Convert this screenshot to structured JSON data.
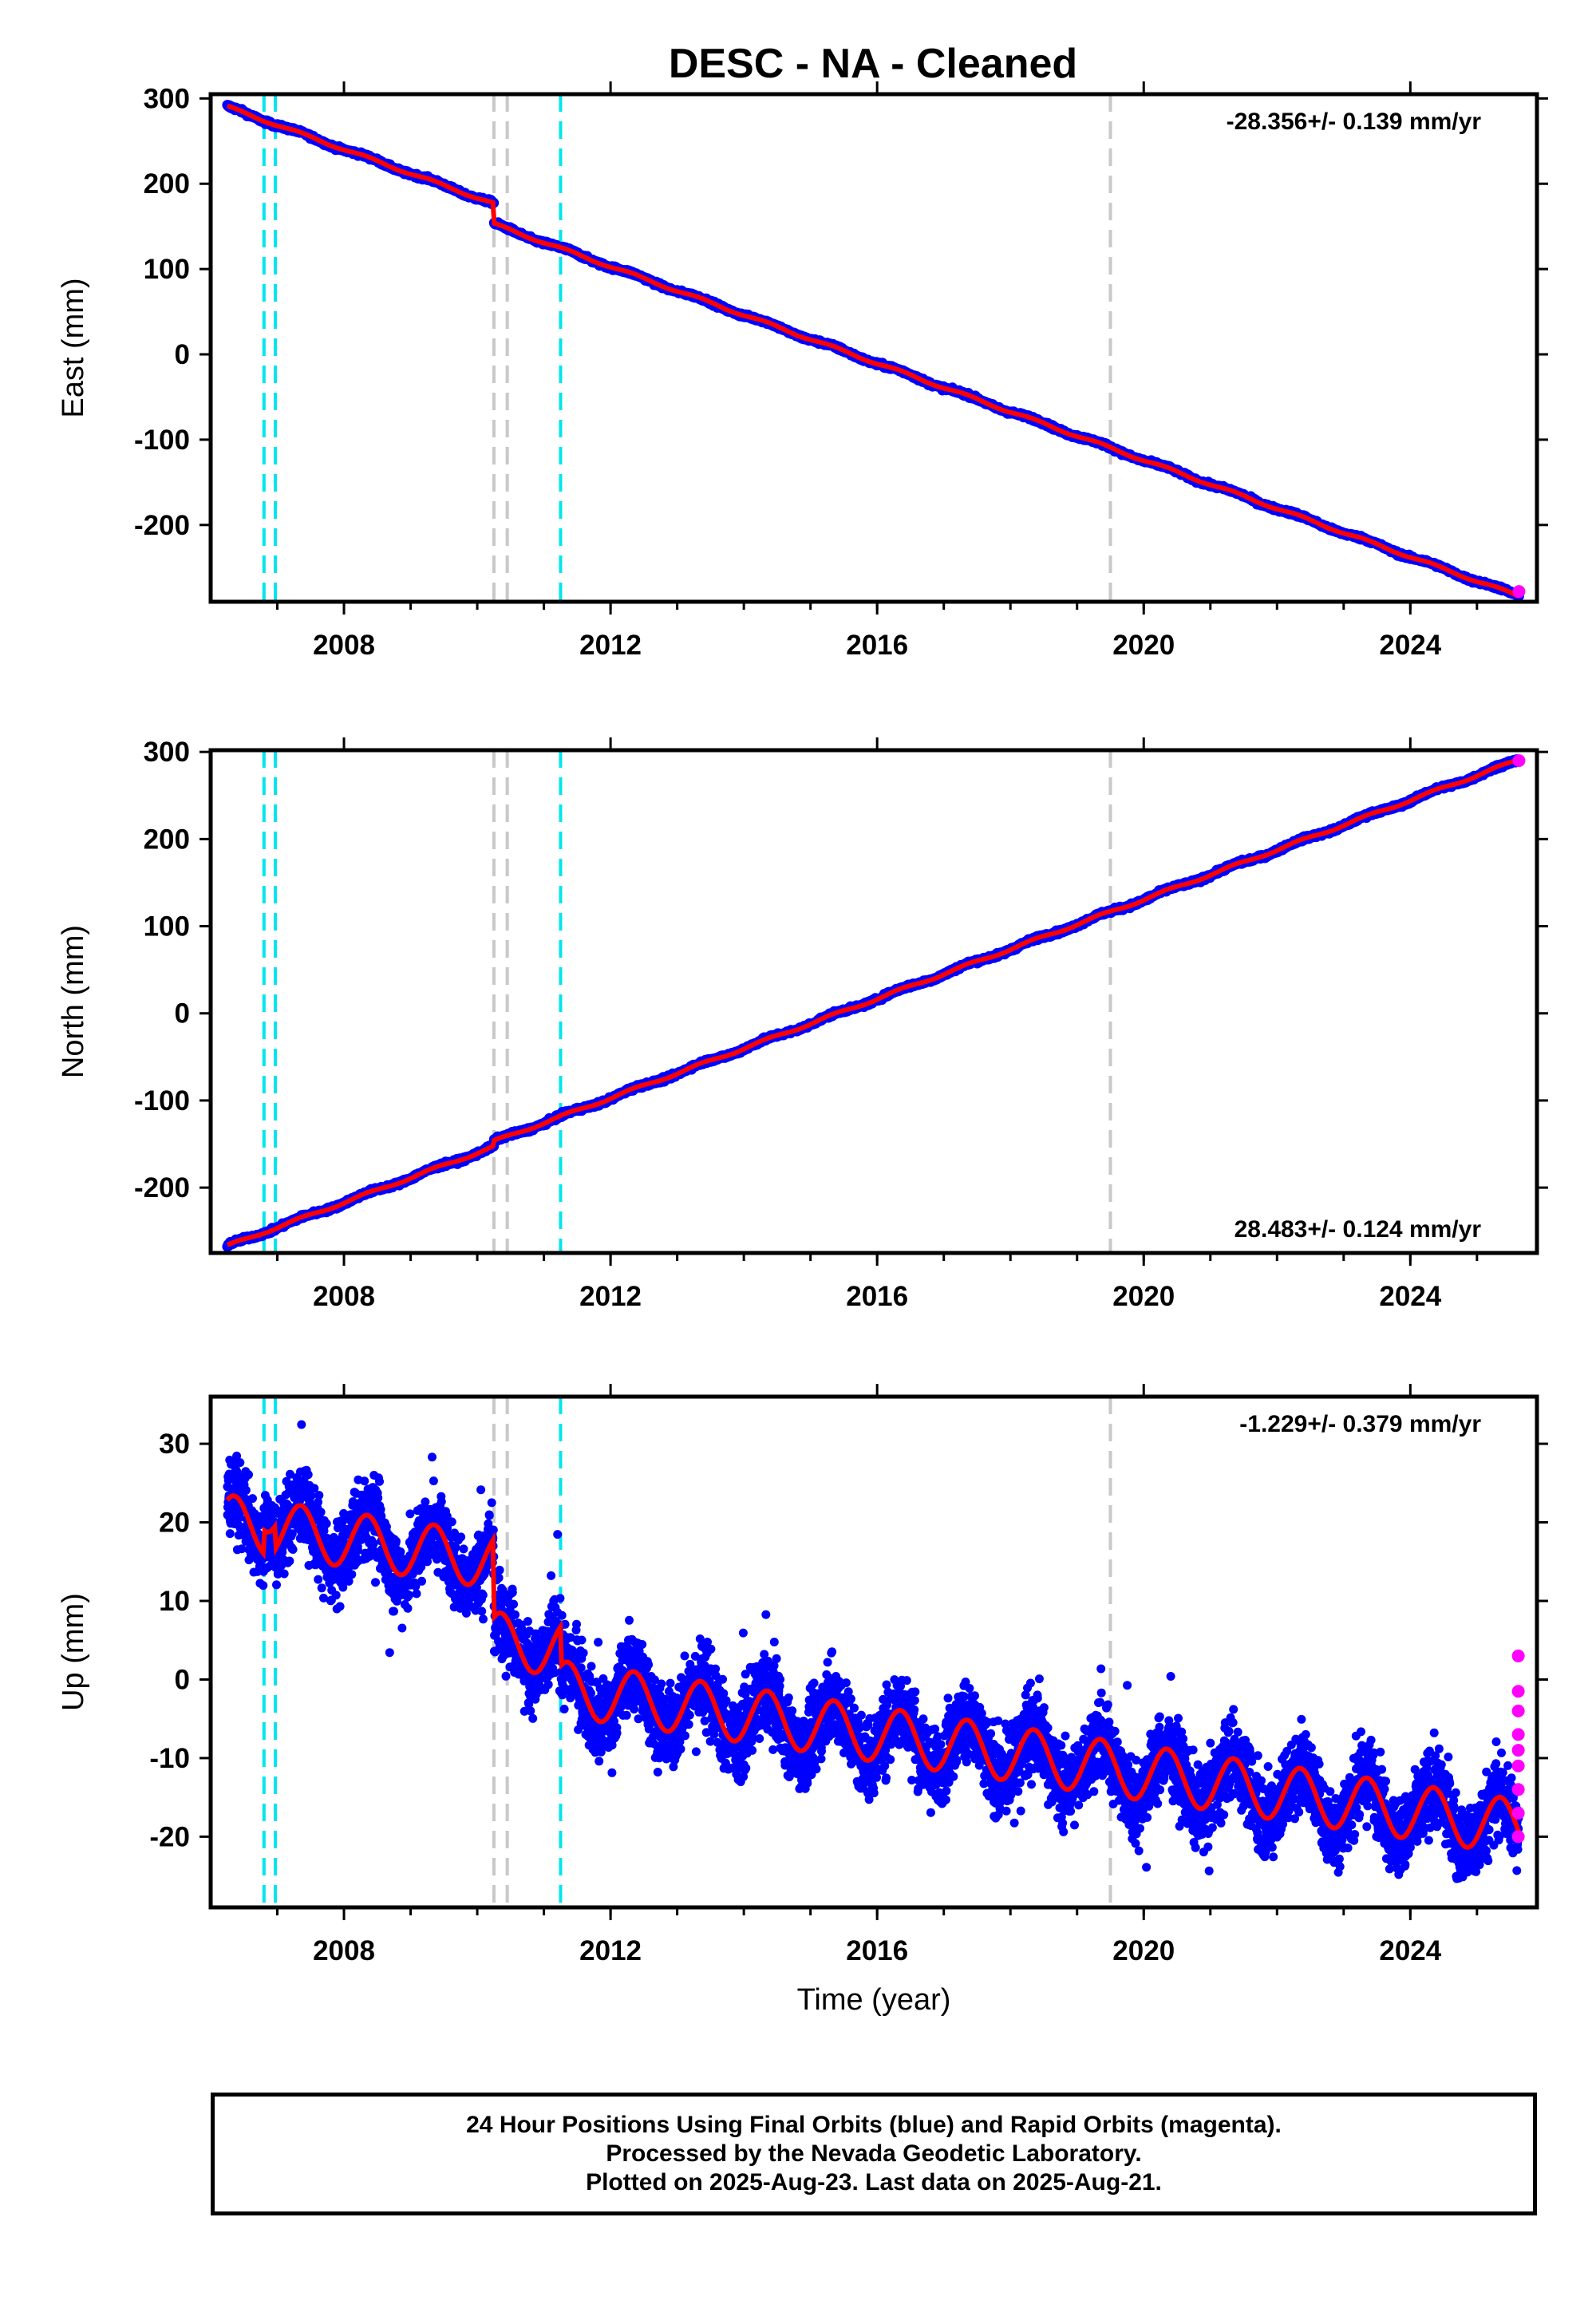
{
  "figure_title": "DESC  - NA - Cleaned",
  "footer": {
    "line1": "24 Hour Positions Using Final Orbits (blue) and Rapid Orbits (magenta).",
    "line2": "Processed by the Nevada Geodetic Laboratory.",
    "line3": "Plotted on 2025-Aug-23. Last data on 2025-Aug-21."
  },
  "colors": {
    "final_orbits": "#0000ff",
    "rapid_orbits": "#ff00ff",
    "model": "#ff0000",
    "equipment_change": "#00e5ee",
    "earthquake": "#c8c8c8"
  },
  "chart_data": [
    {
      "type": "scatter",
      "title": "",
      "ylabel": "East (mm)",
      "xlabel": "",
      "xlim": [
        2006.0,
        2025.9
      ],
      "ylim": [
        -290,
        305
      ],
      "xticks": [
        2008,
        2012,
        2016,
        2020,
        2024
      ],
      "yticks": [
        -200,
        -100,
        0,
        100,
        200,
        300
      ],
      "rate_label": "-28.356+/- 0.139 mm/yr",
      "rate_label_position": "top-right",
      "start": 2006.25,
      "end": 2025.63,
      "rate_mm_per_yr": -28.356,
      "value_at_start": 290,
      "offsets": [
        {
          "year": 2010.25,
          "mm": -24
        }
      ],
      "seasonal_amplitude_mm": 1.5,
      "noise_mm": 1.5,
      "rapid_points": [
        {
          "x": 2025.63,
          "y": -278
        }
      ],
      "equipment_change_years": [
        2006.8,
        2006.97,
        2011.25
      ],
      "earthquake_years": [
        2010.25,
        2010.45,
        2019.5
      ]
    },
    {
      "type": "scatter",
      "title": "",
      "ylabel": "North (mm)",
      "xlabel": "",
      "xlim": [
        2006.0,
        2025.9
      ],
      "ylim": [
        -275,
        302
      ],
      "xticks": [
        2008,
        2012,
        2016,
        2020,
        2024
      ],
      "yticks": [
        -200,
        -100,
        0,
        100,
        200,
        300
      ],
      "rate_label": "28.483+/- 0.124 mm/yr",
      "rate_label_position": "bottom-right",
      "start": 2006.25,
      "end": 2025.63,
      "rate_mm_per_yr": 28.483,
      "value_at_start": -267,
      "offsets": [
        {
          "year": 2010.25,
          "mm": 6
        }
      ],
      "seasonal_amplitude_mm": 1.5,
      "noise_mm": 1.5,
      "rapid_points": [
        {
          "x": 2025.63,
          "y": 290
        }
      ],
      "equipment_change_years": [
        2006.8,
        2006.97,
        2011.25
      ],
      "earthquake_years": [
        2010.25,
        2010.45,
        2019.5
      ]
    },
    {
      "type": "scatter",
      "title": "",
      "ylabel": "Up (mm)",
      "xlabel": "Time (year)",
      "xlim": [
        2006.0,
        2025.9
      ],
      "ylim": [
        -29,
        36
      ],
      "xticks": [
        2008,
        2012,
        2016,
        2020,
        2024
      ],
      "yticks": [
        -20,
        -10,
        0,
        10,
        20,
        30
      ],
      "rate_label": "-1.229+/- 0.379 mm/yr",
      "rate_label_position": "top-right",
      "start": 2006.25,
      "end": 2025.63,
      "rate_mm_per_yr": -1.229,
      "value_at_start": 20,
      "offsets": [
        {
          "year": 2006.8,
          "mm": 3
        },
        {
          "year": 2006.97,
          "mm": -3
        },
        {
          "year": 2010.25,
          "mm": -10
        },
        {
          "year": 2011.25,
          "mm": -5
        }
      ],
      "seasonal_amplitude_mm": 3.5,
      "noise_mm": 3.5,
      "rapid_points": [
        {
          "x": 2025.62,
          "y": 3
        },
        {
          "x": 2025.62,
          "y": -1.5
        },
        {
          "x": 2025.62,
          "y": -4
        },
        {
          "x": 2025.62,
          "y": -7
        },
        {
          "x": 2025.62,
          "y": -9
        },
        {
          "x": 2025.62,
          "y": -11
        },
        {
          "x": 2025.62,
          "y": -14
        },
        {
          "x": 2025.62,
          "y": -17
        },
        {
          "x": 2025.62,
          "y": -20
        }
      ],
      "equipment_change_years": [
        2006.8,
        2006.97,
        2011.25
      ],
      "earthquake_years": [
        2010.25,
        2010.45,
        2019.5
      ]
    }
  ]
}
